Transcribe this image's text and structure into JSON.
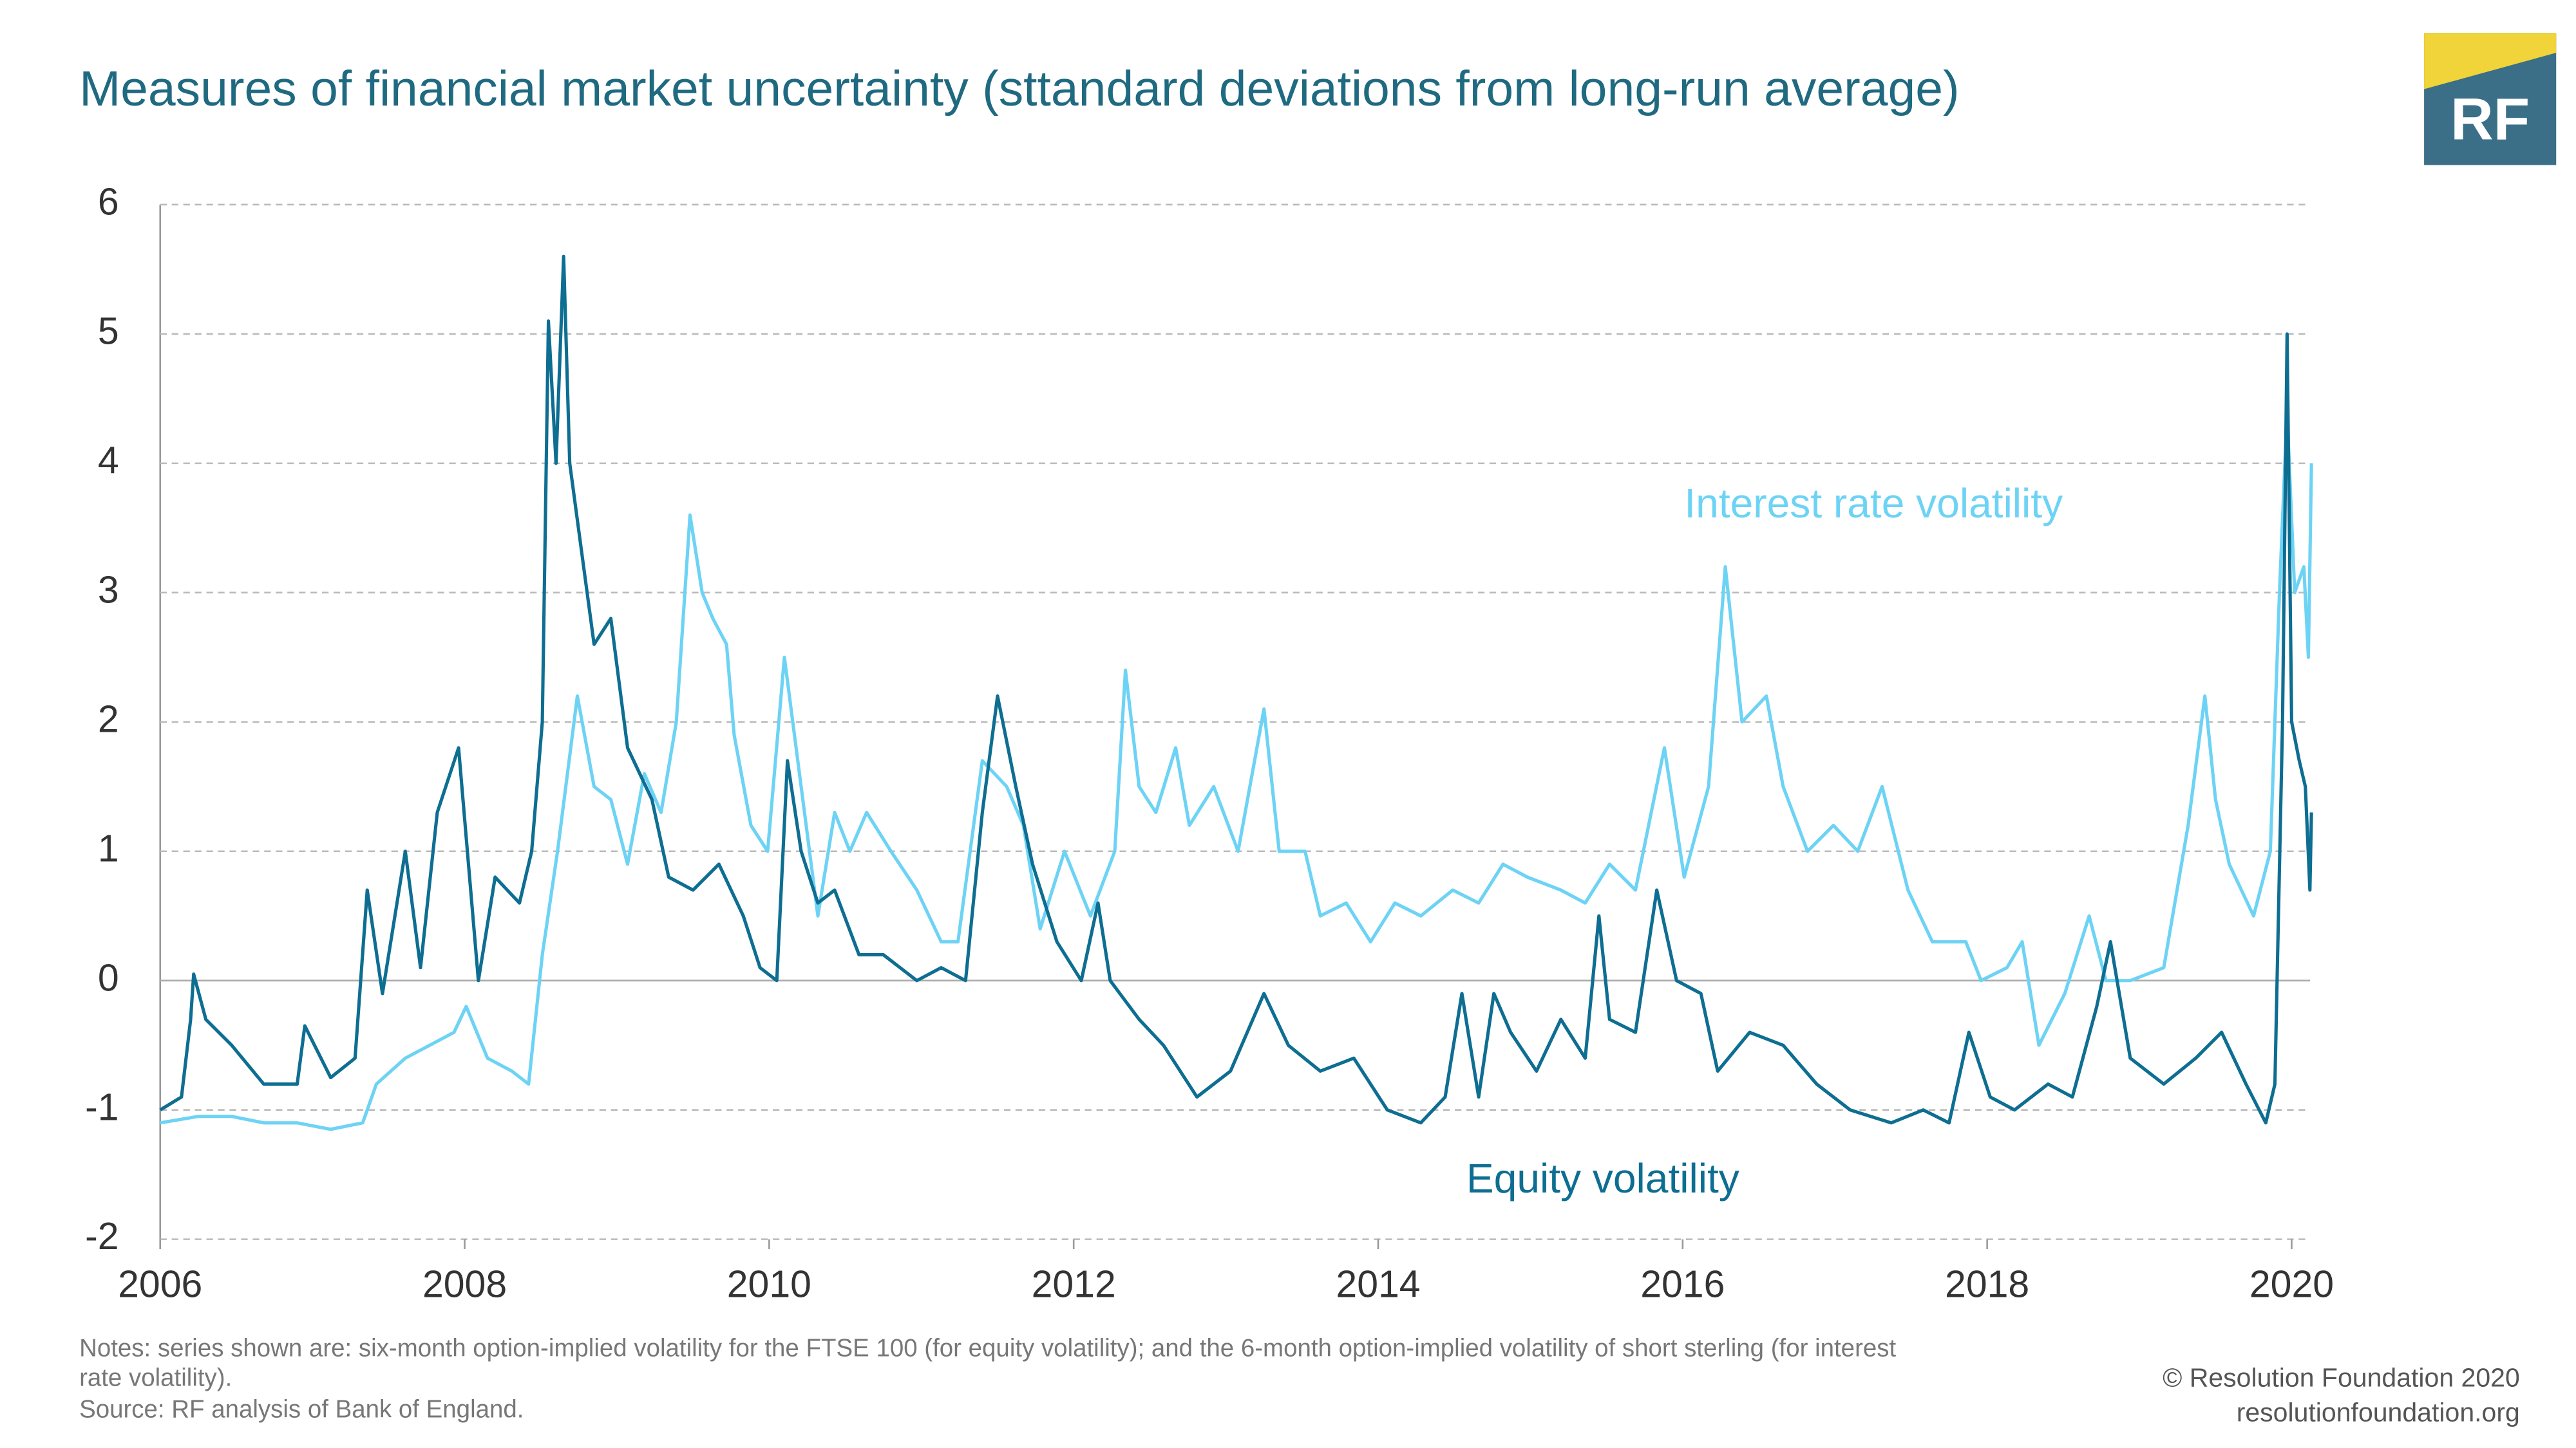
{
  "chart_data": {
    "type": "line",
    "title": "Measures of financial market uncertainty (sttandard deviations from long-run average)",
    "xlim": [
      2006,
      2020.15
    ],
    "xticks": [
      2006,
      2008,
      2010,
      2012,
      2014,
      2016,
      2018,
      2020
    ],
    "ylim": [
      -2,
      6
    ],
    "yticks": [
      -2,
      -1,
      0,
      1,
      2,
      3,
      4,
      5,
      6
    ],
    "grid": true,
    "series": [
      {
        "name": "Interest rate volatility",
        "color": "#6dd3f5",
        "x": [
          2006.0,
          2006.25,
          2006.47,
          2006.68,
          2006.9,
          2007.12,
          2007.33,
          2007.42,
          2007.61,
          2007.77,
          2007.93,
          2008.01,
          2008.15,
          2008.31,
          2008.42,
          2008.51,
          2008.61,
          2008.74,
          2008.85,
          2008.96,
          2009.07,
          2009.18,
          2009.29,
          2009.39,
          2009.48,
          2009.56,
          2009.63,
          2009.72,
          2009.77,
          2009.88,
          2009.99,
          2010.1,
          2010.21,
          2010.32,
          2010.43,
          2010.53,
          2010.64,
          2010.8,
          2010.97,
          2011.13,
          2011.24,
          2011.4,
          2011.56,
          2011.67,
          2011.78,
          2011.94,
          2012.11,
          2012.27,
          2012.34,
          2012.43,
          2012.54,
          2012.67,
          2012.76,
          2012.92,
          2013.08,
          2013.25,
          2013.35,
          2013.52,
          2013.62,
          2013.79,
          2013.95,
          2014.11,
          2014.28,
          2014.49,
          2014.66,
          2014.82,
          2014.98,
          2015.2,
          2015.36,
          2015.52,
          2015.69,
          2015.88,
          2016.01,
          2016.17,
          2016.28,
          2016.39,
          2016.55,
          2016.66,
          2016.82,
          2016.99,
          2017.15,
          2017.31,
          2017.48,
          2017.64,
          2017.86,
          2017.96,
          2018.13,
          2018.23,
          2018.34,
          2018.51,
          2018.67,
          2018.78,
          2018.94,
          2019.16,
          2019.32,
          2019.43,
          2019.5,
          2019.59,
          2019.75,
          2019.86,
          2019.92,
          2019.97,
          2020.02,
          2020.08,
          2020.11,
          2020.13
        ],
        "values": [
          -1.1,
          -1.05,
          -1.05,
          -1.1,
          -1.1,
          -1.15,
          -1.1,
          -0.8,
          -0.6,
          -0.5,
          -0.4,
          -0.2,
          -0.6,
          -0.7,
          -0.8,
          0.2,
          1.0,
          2.2,
          1.5,
          1.4,
          0.9,
          1.6,
          1.3,
          2.0,
          3.6,
          3.0,
          2.8,
          2.6,
          1.9,
          1.2,
          1.0,
          2.5,
          1.5,
          0.5,
          1.3,
          1.0,
          1.3,
          1.0,
          0.7,
          0.3,
          0.3,
          1.7,
          1.5,
          1.2,
          0.4,
          1.0,
          0.5,
          1.0,
          2.4,
          1.5,
          1.3,
          1.8,
          1.2,
          1.5,
          1.0,
          2.1,
          1.0,
          1.0,
          0.5,
          0.6,
          0.3,
          0.6,
          0.5,
          0.7,
          0.6,
          0.9,
          0.8,
          0.7,
          0.6,
          0.9,
          0.7,
          1.8,
          0.8,
          1.5,
          3.2,
          2.0,
          2.2,
          1.5,
          1.0,
          1.2,
          1.0,
          1.5,
          0.7,
          0.3,
          0.3,
          0.0,
          0.1,
          0.3,
          -0.5,
          -0.1,
          0.5,
          0.0,
          0.0,
          0.1,
          1.2,
          2.2,
          1.4,
          0.9,
          0.5,
          1.0,
          3.0,
          4.4,
          3.0,
          3.2,
          2.5,
          4.0
        ]
      },
      {
        "name": "Equity volatility",
        "color": "#0e6e92",
        "x": [
          2006.0,
          2006.14,
          2006.2,
          2006.22,
          2006.3,
          2006.47,
          2006.68,
          2006.9,
          2006.95,
          2007.12,
          2007.28,
          2007.36,
          2007.46,
          2007.61,
          2007.71,
          2007.82,
          2007.96,
          2008.09,
          2008.2,
          2008.36,
          2008.44,
          2008.51,
          2008.55,
          2008.6,
          2008.65,
          2008.69,
          2008.77,
          2008.85,
          2008.96,
          2009.07,
          2009.23,
          2009.34,
          2009.5,
          2009.67,
          2009.83,
          2009.94,
          2010.05,
          2010.12,
          2010.21,
          2010.32,
          2010.43,
          2010.59,
          2010.75,
          2010.97,
          2011.13,
          2011.29,
          2011.4,
          2011.5,
          2011.62,
          2011.73,
          2011.89,
          2012.05,
          2012.16,
          2012.24,
          2012.43,
          2012.59,
          2012.81,
          2013.03,
          2013.25,
          2013.41,
          2013.62,
          2013.84,
          2014.06,
          2014.28,
          2014.44,
          2014.55,
          2014.66,
          2014.76,
          2014.87,
          2015.04,
          2015.2,
          2015.36,
          2015.45,
          2015.52,
          2015.69,
          2015.83,
          2015.96,
          2016.12,
          2016.23,
          2016.44,
          2016.66,
          2016.88,
          2017.1,
          2017.37,
          2017.58,
          2017.75,
          2017.88,
          2018.02,
          2018.18,
          2018.4,
          2018.56,
          2018.72,
          2018.81,
          2018.94,
          2019.16,
          2019.37,
          2019.54,
          2019.7,
          2019.83,
          2019.89,
          2019.94,
          2019.97,
          2020.0,
          2020.05,
          2020.09,
          2020.12,
          2020.13
        ],
        "values": [
          -1.0,
          -0.9,
          -0.3,
          0.05,
          -0.3,
          -0.5,
          -0.8,
          -0.8,
          -0.35,
          -0.75,
          -0.6,
          0.7,
          -0.1,
          1.0,
          0.1,
          1.3,
          1.8,
          0.0,
          0.8,
          0.6,
          1.0,
          2.0,
          5.1,
          4.0,
          5.6,
          4.0,
          3.3,
          2.6,
          2.8,
          1.8,
          1.4,
          0.8,
          0.7,
          0.9,
          0.5,
          0.1,
          0.0,
          1.7,
          1.0,
          0.6,
          0.7,
          0.2,
          0.2,
          0.0,
          0.1,
          0.0,
          1.3,
          2.2,
          1.5,
          0.9,
          0.3,
          0.0,
          0.6,
          0.0,
          -0.3,
          -0.5,
          -0.9,
          -0.7,
          -0.1,
          -0.5,
          -0.7,
          -0.6,
          -1.0,
          -1.1,
          -0.9,
          -0.1,
          -0.9,
          -0.1,
          -0.4,
          -0.7,
          -0.3,
          -0.6,
          0.5,
          -0.3,
          -0.4,
          0.7,
          0.0,
          -0.1,
          -0.7,
          -0.4,
          -0.5,
          -0.8,
          -1.0,
          -1.1,
          -1.0,
          -1.1,
          -0.4,
          -0.9,
          -1.0,
          -0.8,
          -0.9,
          -0.2,
          0.3,
          -0.6,
          -0.8,
          -0.6,
          -0.4,
          -0.8,
          -1.1,
          -0.8,
          2.0,
          5.0,
          2.0,
          1.7,
          1.5,
          0.7,
          1.3
        ]
      }
    ]
  },
  "footer": {
    "notes": [
      "Notes: series shown are: six-month option-implied volatility for the FTSE 100 (for equity volatility); and the 6-month option-implied volatility of short sterling (for interest",
      "rate volatility).",
      "Source: RF analysis of Bank of England."
    ],
    "copyright": "© Resolution Foundation 2020",
    "website": "resolutionfoundation.org"
  },
  "logo": "RF"
}
